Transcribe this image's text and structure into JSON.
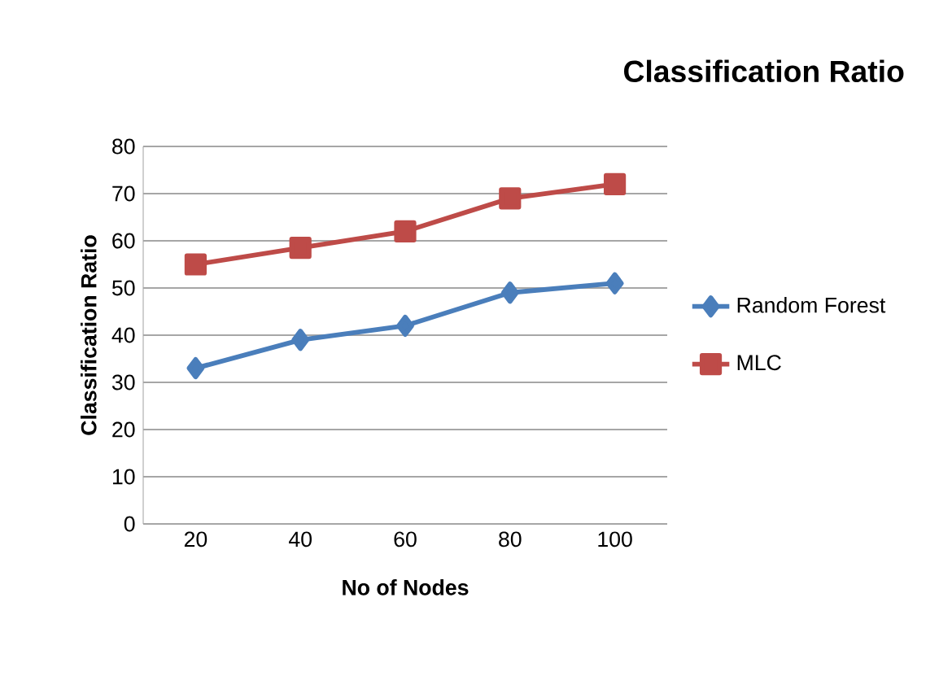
{
  "chart_data": {
    "type": "line",
    "title": "Classification Ratio",
    "xlabel": "No of Nodes",
    "ylabel": "Classification Ratio",
    "categories": [
      "20",
      "40",
      "60",
      "80",
      "100"
    ],
    "series": [
      {
        "name": "Random Forest",
        "color": "#4a7ebb",
        "marker": "diamond",
        "values": [
          33,
          39,
          42,
          49,
          51
        ]
      },
      {
        "name": "MLC",
        "color": "#be4b48",
        "marker": "square",
        "values": [
          55,
          58.5,
          62,
          69,
          72
        ]
      }
    ],
    "ylim": [
      0,
      80
    ],
    "yticks": [
      0,
      10,
      20,
      30,
      40,
      50,
      60,
      70,
      80
    ],
    "grid": "y",
    "legend": "right",
    "line_style": "solid"
  }
}
